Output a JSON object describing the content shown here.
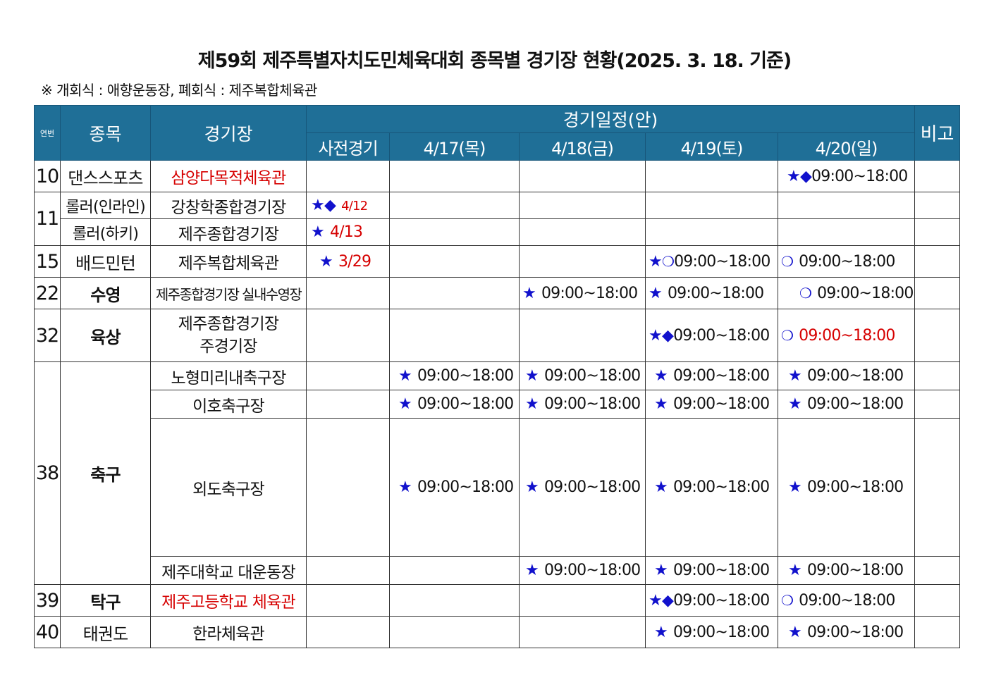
{
  "title": "제59회 제주특별자치도민체육대회 종목별 경기장 현황(2025. 3. 18. 기준)",
  "note": "※ 개회식 : 애향운동장, 폐회식 : 제주복합체육관",
  "header": {
    "no": "연번",
    "sport": "종목",
    "venue": "경기장",
    "schedule": "경기일정(안)",
    "remark": "비고",
    "pre": "사전경기",
    "d17": "4/17(목)",
    "d18": "4/18(금)",
    "d19": "4/19(토)",
    "d20": "4/20(일)"
  },
  "icons": {
    "star": "★",
    "diamond": "◆",
    "circle": "❍"
  },
  "time": "09:00~18:00",
  "rows": {
    "r10": {
      "no": "10",
      "sport": "댄스스포츠",
      "venue": "삼양다목적체육관"
    },
    "r11a": {
      "no": "11",
      "sport": "롤러(인라인)",
      "venue": "강창학종합경기장",
      "pre": "4/12"
    },
    "r11b": {
      "sport": "롤러(하키)",
      "venue": "제주종합경기장",
      "pre": "4/13"
    },
    "r15": {
      "no": "15",
      "sport": "배드민턴",
      "venue": "제주복합체육관",
      "pre": "3/29"
    },
    "r22": {
      "no": "22",
      "sport": "수영",
      "venue": "제주종합경기장 실내수영장"
    },
    "r32": {
      "no": "32",
      "sport": "육상",
      "venue1": "제주종합경기장",
      "venue2": "주경기장"
    },
    "r38": {
      "no": "38",
      "sport": "축구",
      "v1": "노형미리내축구장",
      "v2": "이호축구장",
      "v3": "외도축구장",
      "v4": "제주대학교 대운동장"
    },
    "r39": {
      "no": "39",
      "sport": "탁구",
      "venue": "제주고등학교 체육관"
    },
    "r40": {
      "no": "40",
      "sport": "태권도",
      "venue": "한라체육관"
    }
  },
  "colors": {
    "header_bg": "#1f6f97",
    "icon": "#1111cc",
    "highlight": "#d60000"
  }
}
